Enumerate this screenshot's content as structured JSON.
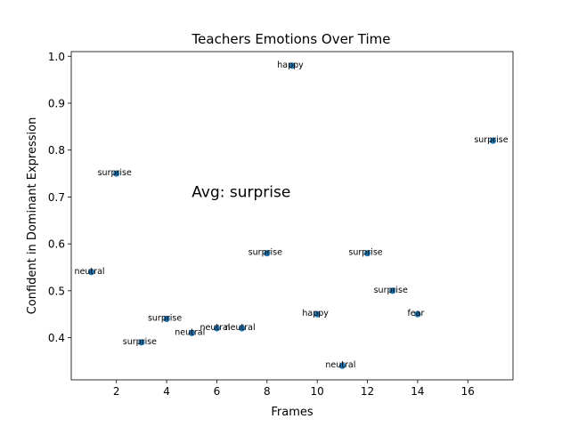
{
  "chart_data": {
    "type": "scatter",
    "title": "Teachers Emotions Over Time",
    "xlabel": "Frames",
    "ylabel": "Confident in Dominant Expression",
    "xlim": [
      0.2,
      17.8
    ],
    "ylim": [
      0.31,
      1.01
    ],
    "xticks": [
      2,
      4,
      6,
      8,
      10,
      12,
      14,
      16
    ],
    "yticks": [
      0.4,
      0.5,
      0.6,
      0.7,
      0.8,
      0.9,
      1.0
    ],
    "ytick_labels": [
      "0.4",
      "0.5",
      "0.6",
      "0.7",
      "0.8",
      "0.9",
      "1.0"
    ],
    "grid": false,
    "marker_color": "#1f77b4",
    "points": [
      {
        "x": 1,
        "y": 0.54,
        "label": "neutral"
      },
      {
        "x": 2,
        "y": 0.75,
        "label": "surprise"
      },
      {
        "x": 3,
        "y": 0.39,
        "label": "surprise"
      },
      {
        "x": 4,
        "y": 0.44,
        "label": "surprise"
      },
      {
        "x": 5,
        "y": 0.41,
        "label": "neutral"
      },
      {
        "x": 6,
        "y": 0.42,
        "label": "neutral"
      },
      {
        "x": 7,
        "y": 0.42,
        "label": "neutral"
      },
      {
        "x": 8,
        "y": 0.58,
        "label": "surprise"
      },
      {
        "x": 9,
        "y": 0.98,
        "label": "happy"
      },
      {
        "x": 10,
        "y": 0.45,
        "label": "happy"
      },
      {
        "x": 11,
        "y": 0.34,
        "label": "neutral"
      },
      {
        "x": 12,
        "y": 0.58,
        "label": "surprise"
      },
      {
        "x": 13,
        "y": 0.5,
        "label": "surprise"
      },
      {
        "x": 14,
        "y": 0.45,
        "label": "fear"
      },
      {
        "x": 17,
        "y": 0.82,
        "label": "surprise"
      }
    ],
    "annotation": {
      "text": "Avg: surprise",
      "x": 5,
      "y": 0.7
    }
  }
}
